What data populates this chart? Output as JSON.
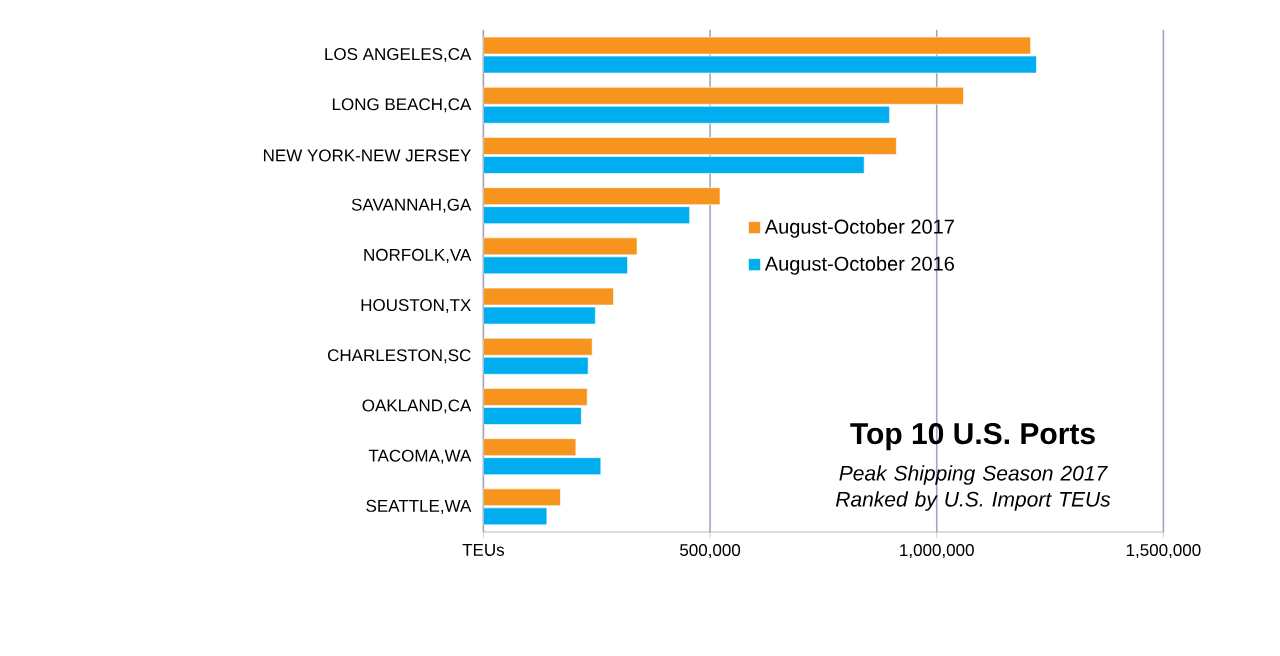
{
  "chart_data": {
    "type": "bar",
    "orientation": "horizontal",
    "title": "Top 10 U.S. Ports",
    "subtitle": "Peak Shipping Season 2017 Ranked by U.S. Import TEUs",
    "categories": [
      "LOS ANGELES,CA",
      "LONG BEACH,CA",
      "NEW YORK-NEW JERSEY",
      "SAVANNAH,GA",
      "NORFOLK,VA",
      "HOUSTON,TX",
      "CHARLESTON,SC",
      "OAKLAND,CA",
      "TACOMA,WA",
      "SEATTLE,WA"
    ],
    "series": [
      {
        "name": "August-October 2017",
        "color": "#f7941d",
        "values": [
          1207000,
          1059000,
          911000,
          522000,
          339000,
          287000,
          240000,
          229000,
          204000,
          170000
        ]
      },
      {
        "name": "August-October 2016",
        "color": "#00aeef",
        "values": [
          1220000,
          896000,
          840000,
          455000,
          318000,
          247000,
          231000,
          216000,
          259000,
          140000
        ]
      }
    ],
    "xlim": [
      0,
      1500000
    ],
    "xticks": [
      {
        "value": 0,
        "label": "TEUs"
      },
      {
        "value": 500000,
        "label": "500,000"
      },
      {
        "value": 1000000,
        "label": "1,000,000"
      },
      {
        "value": 1500000,
        "label": "1,500,000"
      }
    ],
    "grid": "x",
    "legend": "right"
  }
}
